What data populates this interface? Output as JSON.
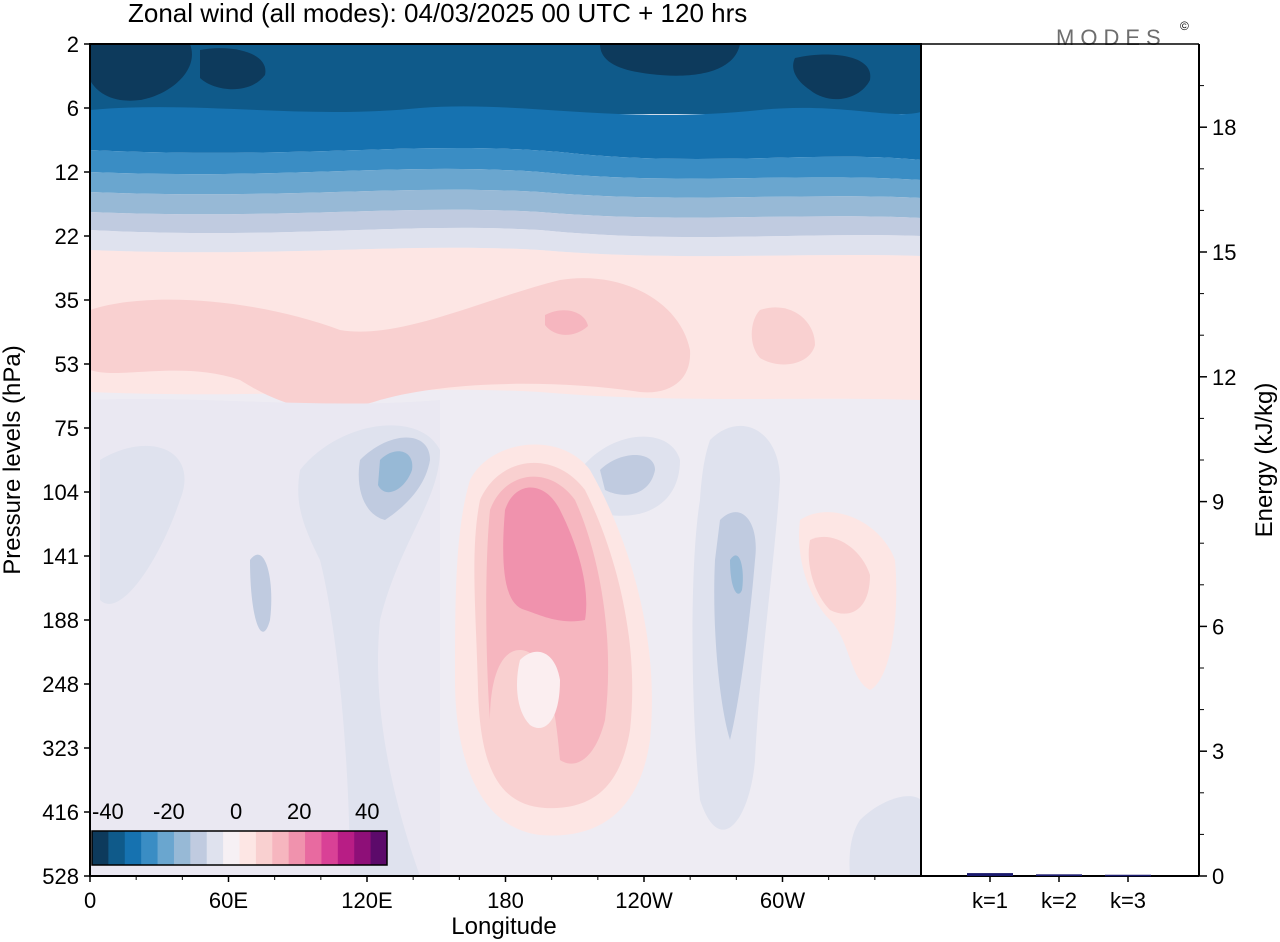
{
  "title": "Zonal wind (all modes):  04/03/2025  00 UTC  + 120 hrs",
  "logo": {
    "text": "MODES",
    "mark": "©"
  },
  "chart_data": [
    {
      "type": "heatmap",
      "xlabel": "Longitude",
      "ylabel": "Pressure levels (hPa)",
      "x_ticks": [
        "0",
        "60E",
        "120E",
        "180",
        "120W",
        "60W"
      ],
      "y_ticks": [
        "2",
        "6",
        "12",
        "22",
        "35",
        "53",
        "75",
        "104",
        "141",
        "188",
        "248",
        "323",
        "416",
        "528"
      ],
      "colorbar": {
        "labels": [
          "-40",
          "-20",
          "0",
          "20",
          "40"
        ],
        "colors": [
          "#0d3a5c",
          "#0f5a8a",
          "#1672b0",
          "#3a8dc4",
          "#6aa6cf",
          "#97b9d6",
          "#c0cbe0",
          "#dfe2ee",
          "#f6f0f4",
          "#fde6e4",
          "#f9d0d0",
          "#f6b6bf",
          "#f092ad",
          "#e86aa0",
          "#d94196",
          "#b81d85",
          "#8e0f78",
          "#5c0a6a"
        ]
      },
      "field_description_levels": {
        "top_2_to_12hPa": "strong easterlies (-40 to -25)",
        "22hPa": "near zero",
        "35_to_75hPa": "weak westerlies (5 to 10)",
        "lower_levels": "mixed weak winds with westerly maximum (~20) near 180-160W at 104-188 hPa"
      },
      "ylim": [
        "2",
        "528"
      ],
      "xlim": [
        "0",
        "360"
      ]
    },
    {
      "type": "bar",
      "categories": [
        "k=1",
        "k=2",
        "k=3"
      ],
      "values": [
        0.07,
        0.04,
        0.03
      ],
      "ylabel": "Energy (kJ/kg)",
      "ylim": [
        0,
        20
      ],
      "y_ticks": [
        "0",
        "3",
        "6",
        "9",
        "12",
        "15",
        "18"
      ],
      "color": "#1a1a6e"
    }
  ]
}
